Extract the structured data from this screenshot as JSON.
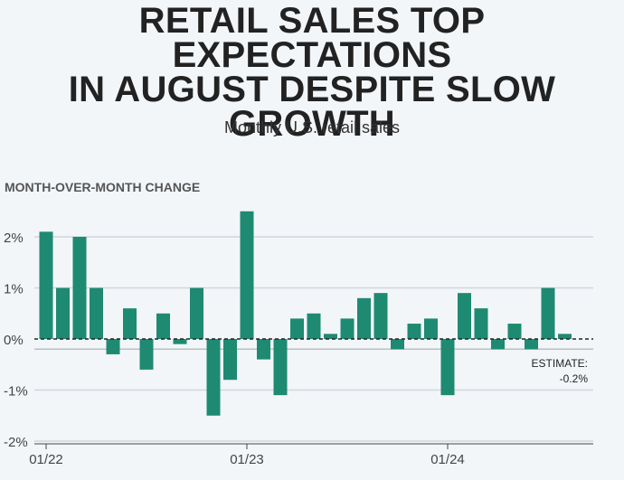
{
  "title": "RETAIL SALES TOP EXPECTATIONS\nIN AUGUST DESPITE SLOW\nGROWTH",
  "subtitle": "Monthly U.S. retail sales",
  "chart_data": {
    "type": "bar",
    "title": "RETAIL SALES TOP EXPECTATIONS IN AUGUST DESPITE SLOW GROWTH",
    "subtitle": "Monthly U.S. retail sales",
    "ylabel": "MONTH-OVER-MONTH CHANGE",
    "xlabel": "",
    "categories": [
      "Jan 2022",
      "Feb 2022",
      "Mar 2022",
      "Apr 2022",
      "May 2022",
      "Jun 2022",
      "Jul 2022",
      "Aug 2022",
      "Sep 2022",
      "Oct 2022",
      "Nov 2022",
      "Dec 2022",
      "Jan 2023",
      "Feb 2023",
      "Mar 2023",
      "Apr 2023",
      "May 2023",
      "Jun 2023",
      "Jul 2023",
      "Aug 2023",
      "Sep 2023",
      "Oct 2023",
      "Nov 2023",
      "Dec 2023",
      "Jan 2024",
      "Feb 2024",
      "Mar 2024",
      "Apr 2024",
      "May 2024",
      "Jun 2024",
      "Jul 2024",
      "Aug 2024"
    ],
    "values": [
      2.1,
      1.0,
      2.0,
      1.0,
      -0.3,
      0.6,
      -0.6,
      0.5,
      -0.1,
      1.0,
      -1.5,
      -0.8,
      2.5,
      -0.4,
      -1.1,
      0.4,
      0.5,
      0.1,
      0.4,
      0.8,
      0.9,
      -0.2,
      0.3,
      0.4,
      -1.1,
      0.9,
      0.6,
      -0.2,
      0.3,
      -0.2,
      1.0,
      0.1
    ],
    "ylim": [
      -2,
      2.6
    ],
    "yticks": [
      2,
      1,
      0,
      -1,
      -2
    ],
    "ytick_labels": [
      "2%",
      "1%",
      "0%",
      "-1%",
      "-2%"
    ],
    "xticks": [
      {
        "index": 0,
        "label": "01/22"
      },
      {
        "index": 12,
        "label": "01/23"
      },
      {
        "index": 24,
        "label": "01/24"
      }
    ],
    "estimate": {
      "value": -0.2,
      "label_line1": "ESTIMATE:",
      "label_line2": "-0.2%"
    },
    "grid": true,
    "colors": {
      "bar": "#1e8a72",
      "grid": "#cfd6de",
      "axis": "#444444",
      "estimate_line": "#222222"
    }
  }
}
